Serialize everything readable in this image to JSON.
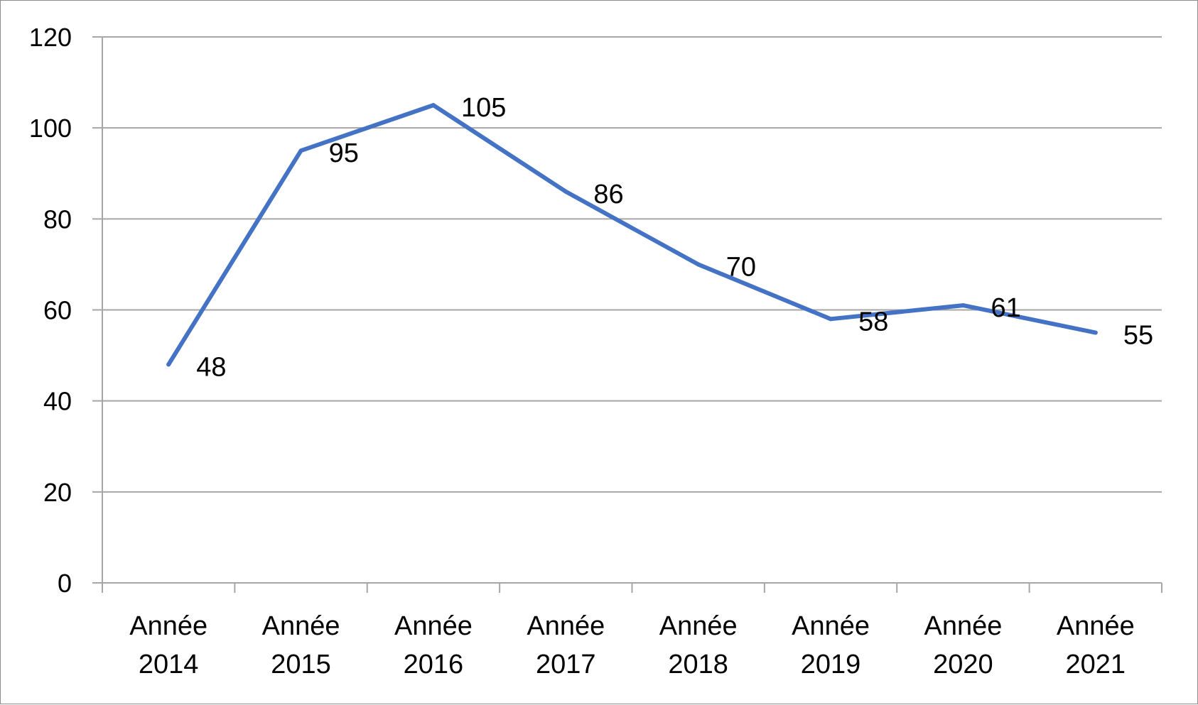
{
  "chart_data": {
    "type": "line",
    "categories": [
      [
        "Année",
        "2014"
      ],
      [
        "Année",
        "2015"
      ],
      [
        "Année",
        "2016"
      ],
      [
        "Année",
        "2017"
      ],
      [
        "Année",
        "2018"
      ],
      [
        "Année",
        "2019"
      ],
      [
        "Année",
        "2020"
      ],
      [
        "Année",
        "2021"
      ]
    ],
    "series": [
      {
        "values": [
          48,
          95,
          105,
          86,
          70,
          58,
          61,
          55
        ]
      }
    ],
    "data_labels": [
      "48",
      "95",
      "105",
      "86",
      "70",
      "58",
      "61",
      "55"
    ],
    "yticks": [
      "0",
      "20",
      "40",
      "60",
      "80",
      "100",
      "120"
    ],
    "ylim": [
      0,
      120
    ],
    "grid": true,
    "legend": "none",
    "colors": {
      "line": "#4472c4",
      "grid": "#a6a6a6",
      "axis": "#a6a6a6"
    }
  }
}
